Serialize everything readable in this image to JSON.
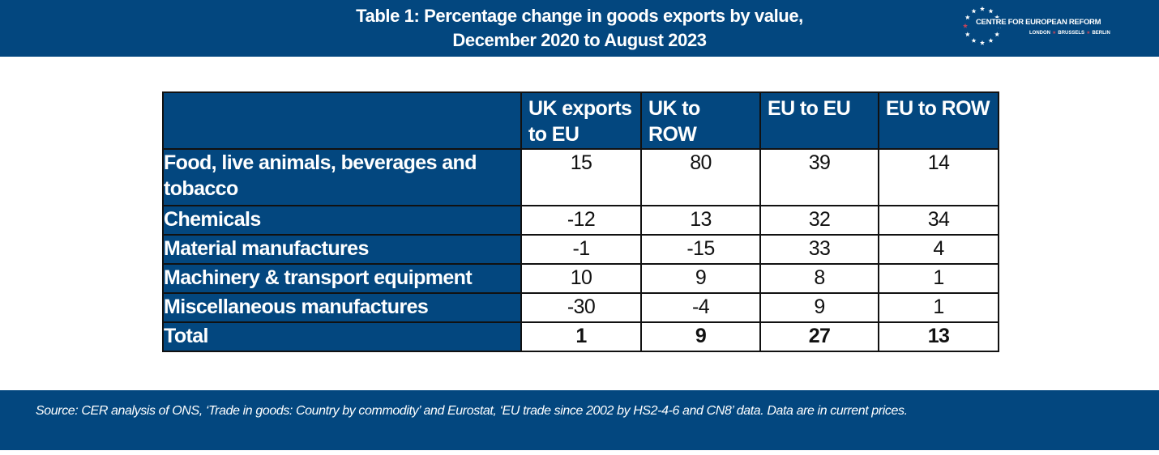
{
  "header": {
    "title_line1": "Table 1: Percentage change in goods exports by value,",
    "title_line2": "December 2020 to August 2023",
    "logo": {
      "name": "CENTRE FOR EUROPEAN REFORM",
      "cities": [
        "LONDON",
        "BRUSSELS",
        "BERLIN"
      ],
      "icon": "eu-star-circle-icon"
    }
  },
  "chart_data": {
    "type": "table",
    "title": "Table 1: Percentage change in goods exports by value, December 2020 to August 2023",
    "columns": [
      "",
      "UK exports to EU",
      "UK to ROW",
      "EU to EU",
      "EU to ROW"
    ],
    "rows": [
      {
        "label": "Food, live animals, beverages and tobacco",
        "values": [
          "15",
          "80",
          "39",
          "14"
        ]
      },
      {
        "label": "Chemicals",
        "values": [
          "-12",
          "13",
          "32",
          "34"
        ]
      },
      {
        "label": "Material manufactures",
        "values": [
          "-1",
          "-15",
          "33",
          "4"
        ]
      },
      {
        "label": "Machinery & transport equipment",
        "values": [
          "10",
          "9",
          "8",
          "1"
        ]
      },
      {
        "label": "Miscellaneous manufactures",
        "values": [
          "-30",
          "-4",
          "9",
          "1"
        ]
      },
      {
        "label": "Total",
        "values": [
          "1",
          "9",
          "27",
          "13"
        ]
      }
    ]
  },
  "footer": {
    "source": "Source: CER analysis of ONS, ‘Trade in goods: Country by commodity’ and Eurostat, ‘EU trade since 2002 by HS2-4-6 and CN8’ data. Data are in current prices."
  },
  "colors": {
    "brand_blue": "#03477f",
    "logo_accent": "#c0435a",
    "cell_background": "#ffffff",
    "border": "#111111"
  }
}
